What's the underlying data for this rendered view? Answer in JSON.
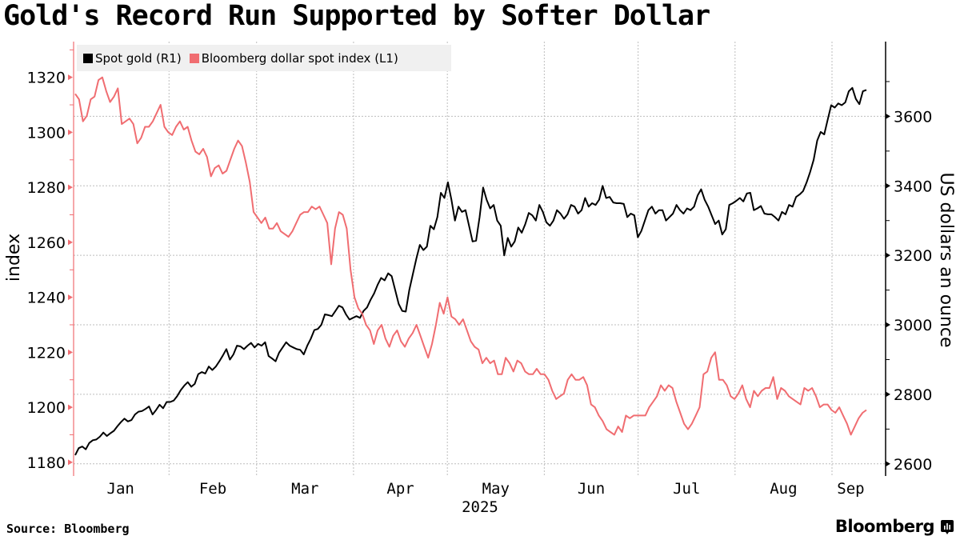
{
  "title": "Gold's Record Run Supported by Softer Dollar",
  "source": "Source: Bloomberg",
  "brand": "Bloomberg",
  "brand_icon": "bloomberg-chart-bubble-icon",
  "chart_data": {
    "type": "line",
    "title": "Gold's Record Run Supported by Softer Dollar",
    "xlabel": "2025",
    "x_tick_labels": [
      "Jan",
      "Feb",
      "Mar",
      "Apr",
      "May",
      "Jun",
      "Jul",
      "Aug",
      "Sep"
    ],
    "x_year_label": "2025",
    "x_range": [
      "2025-01-02",
      "2025-09-12"
    ],
    "grid": true,
    "legend_position": "top-left",
    "left_axis": {
      "label": "index",
      "ylim": [
        1175,
        1333
      ],
      "ticks": [
        1180,
        1200,
        1220,
        1240,
        1260,
        1280,
        1300,
        1320
      ]
    },
    "right_axis": {
      "label": "US dollars an ounce",
      "ylim": [
        2565,
        3815
      ],
      "ticks": [
        2600,
        2800,
        3000,
        3200,
        3400,
        3600
      ]
    },
    "series": [
      {
        "name": "Spot gold (R1)",
        "axis": "right",
        "color": "#000000",
        "values": [
          2625,
          2645,
          2650,
          2642,
          2660,
          2668,
          2670,
          2678,
          2690,
          2680,
          2688,
          2695,
          2708,
          2720,
          2730,
          2722,
          2726,
          2742,
          2750,
          2752,
          2758,
          2765,
          2742,
          2755,
          2770,
          2760,
          2778,
          2778,
          2782,
          2795,
          2812,
          2825,
          2835,
          2822,
          2830,
          2858,
          2864,
          2860,
          2880,
          2870,
          2880,
          2895,
          2912,
          2930,
          2900,
          2915,
          2940,
          2938,
          2930,
          2940,
          2948,
          2935,
          2945,
          2940,
          2950,
          2910,
          2903,
          2895,
          2920,
          2935,
          2950,
          2940,
          2935,
          2930,
          2928,
          2915,
          2940,
          2960,
          2985,
          2988,
          3000,
          3030,
          3028,
          3025,
          3040,
          3055,
          3050,
          3030,
          3015,
          3020,
          3025,
          3020,
          3040,
          3050,
          3072,
          3090,
          3115,
          3135,
          3128,
          3148,
          3140,
          3100,
          3060,
          3040,
          3038,
          3100,
          3145,
          3190,
          3230,
          3215,
          3225,
          3285,
          3275,
          3310,
          3380,
          3365,
          3410,
          3360,
          3300,
          3340,
          3325,
          3330,
          3285,
          3240,
          3242,
          3310,
          3395,
          3360,
          3335,
          3345,
          3300,
          3285,
          3200,
          3250,
          3225,
          3240,
          3280,
          3265,
          3290,
          3322,
          3315,
          3300,
          3345,
          3325,
          3295,
          3285,
          3300,
          3330,
          3320,
          3305,
          3318,
          3345,
          3340,
          3320,
          3330,
          3365,
          3340,
          3350,
          3345,
          3360,
          3400,
          3365,
          3368,
          3352,
          3350,
          3350,
          3348,
          3310,
          3320,
          3315,
          3252,
          3270,
          3300,
          3330,
          3340,
          3320,
          3330,
          3330,
          3300,
          3310,
          3320,
          3345,
          3330,
          3320,
          3335,
          3330,
          3340,
          3372,
          3390,
          3360,
          3340,
          3315,
          3290,
          3300,
          3260,
          3275,
          3345,
          3350,
          3357,
          3365,
          3355,
          3378,
          3380,
          3330,
          3335,
          3342,
          3320,
          3318,
          3318,
          3310,
          3300,
          3325,
          3318,
          3345,
          3340,
          3368,
          3375,
          3385,
          3410,
          3440,
          3475,
          3530,
          3555,
          3548,
          3590,
          3632,
          3625,
          3637,
          3632,
          3640,
          3672,
          3682,
          3650,
          3635,
          3672,
          3676
        ]
      },
      {
        "name": "Bloomberg dollar spot index (L1)",
        "axis": "left",
        "color": "#f06d71",
        "values": [
          1314,
          1312,
          1304,
          1306,
          1312,
          1313,
          1319,
          1320,
          1315,
          1311,
          1313,
          1316,
          1303,
          1304,
          1305,
          1303,
          1296,
          1298,
          1302,
          1302,
          1304,
          1307,
          1310,
          1302,
          1300,
          1299,
          1302,
          1304,
          1301,
          1302,
          1297,
          1293,
          1292,
          1294,
          1291,
          1284,
          1287,
          1288,
          1285,
          1286,
          1290,
          1294,
          1297,
          1295,
          1289,
          1282,
          1271,
          1269,
          1267,
          1269,
          1265,
          1265,
          1267,
          1264,
          1263,
          1262,
          1264,
          1267,
          1270,
          1271,
          1271,
          1273,
          1272,
          1273,
          1270,
          1267,
          1252,
          1265,
          1271,
          1270,
          1265,
          1250,
          1240,
          1236,
          1234,
          1230,
          1228,
          1223,
          1228,
          1230,
          1225,
          1222,
          1226,
          1228,
          1224,
          1222,
          1225,
          1227,
          1230,
          1226,
          1222,
          1218,
          1223,
          1230,
          1238,
          1234,
          1240,
          1233,
          1232,
          1230,
          1232,
          1228,
          1224,
          1222,
          1221,
          1216,
          1218,
          1216,
          1217,
          1212,
          1212,
          1218,
          1216,
          1213,
          1217,
          1216,
          1213,
          1212,
          1212,
          1214,
          1212,
          1212,
          1210,
          1206,
          1203,
          1204,
          1205,
          1210,
          1212,
          1210,
          1210,
          1211,
          1208,
          1201,
          1200,
          1197,
          1195,
          1192,
          1191,
          1190,
          1193,
          1191,
          1197,
          1196,
          1197,
          1197,
          1197,
          1197,
          1200,
          1202,
          1204,
          1208,
          1206,
          1208,
          1207,
          1202,
          1198,
          1194,
          1192,
          1194,
          1197,
          1200,
          1212,
          1213,
          1218,
          1220,
          1210,
          1210,
          1208,
          1204,
          1203,
          1205,
          1208,
          1203,
          1200,
          1206,
          1204,
          1206,
          1207,
          1207,
          1211,
          1203,
          1207,
          1206,
          1204,
          1203,
          1202,
          1201,
          1207,
          1206,
          1207,
          1204,
          1200,
          1201,
          1201,
          1199,
          1198,
          1200,
          1197,
          1194,
          1190,
          1193,
          1196,
          1198,
          1199
        ]
      }
    ]
  }
}
